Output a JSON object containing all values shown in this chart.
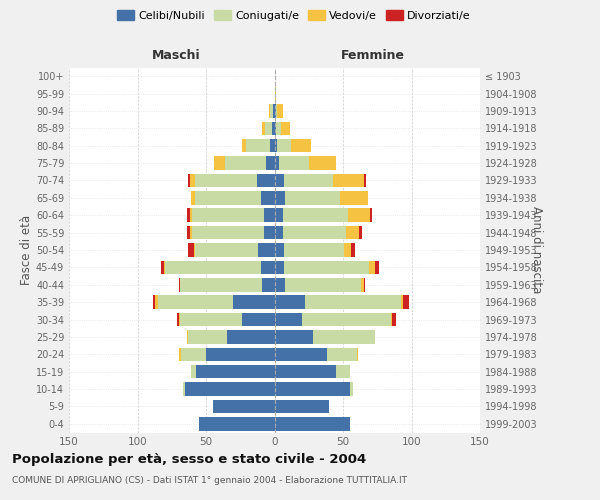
{
  "age_groups": [
    "0-4",
    "5-9",
    "10-14",
    "15-19",
    "20-24",
    "25-29",
    "30-34",
    "35-39",
    "40-44",
    "45-49",
    "50-54",
    "55-59",
    "60-64",
    "65-69",
    "70-74",
    "75-79",
    "80-84",
    "85-89",
    "90-94",
    "95-99",
    "100+"
  ],
  "birth_years": [
    "1999-2003",
    "1994-1998",
    "1989-1993",
    "1984-1988",
    "1979-1983",
    "1974-1978",
    "1969-1973",
    "1964-1968",
    "1959-1963",
    "1954-1958",
    "1949-1953",
    "1944-1948",
    "1939-1943",
    "1934-1938",
    "1929-1933",
    "1924-1928",
    "1919-1923",
    "1914-1918",
    "1909-1913",
    "1904-1908",
    "≤ 1903"
  ],
  "maschi": {
    "celibi": [
      55,
      45,
      65,
      57,
      50,
      35,
      24,
      30,
      9,
      10,
      12,
      8,
      8,
      10,
      13,
      6,
      3,
      2,
      1,
      0,
      0
    ],
    "coniugati": [
      0,
      0,
      2,
      4,
      18,
      28,
      45,
      55,
      60,
      70,
      46,
      52,
      52,
      48,
      45,
      30,
      18,
      5,
      2,
      0,
      0
    ],
    "vedovi": [
      0,
      0,
      0,
      0,
      2,
      1,
      1,
      2,
      0,
      1,
      1,
      2,
      2,
      3,
      4,
      8,
      3,
      2,
      1,
      0,
      0
    ],
    "divorziati": [
      0,
      0,
      0,
      0,
      0,
      0,
      1,
      2,
      1,
      2,
      4,
      2,
      2,
      0,
      1,
      0,
      0,
      0,
      0,
      0,
      0
    ]
  },
  "femmine": {
    "nubili": [
      55,
      40,
      55,
      45,
      38,
      28,
      20,
      22,
      8,
      7,
      7,
      6,
      6,
      8,
      7,
      3,
      2,
      1,
      1,
      0,
      0
    ],
    "coniugate": [
      0,
      0,
      2,
      10,
      22,
      45,
      65,
      70,
      55,
      62,
      44,
      46,
      48,
      40,
      36,
      22,
      10,
      4,
      1,
      0,
      0
    ],
    "vedove": [
      0,
      0,
      0,
      0,
      1,
      0,
      1,
      2,
      2,
      4,
      5,
      10,
      16,
      20,
      22,
      20,
      15,
      6,
      4,
      1,
      0
    ],
    "divorziate": [
      0,
      0,
      0,
      0,
      0,
      0,
      3,
      4,
      1,
      3,
      3,
      2,
      1,
      0,
      2,
      0,
      0,
      0,
      0,
      0,
      0
    ]
  },
  "colors": {
    "celibi": "#4472a8",
    "coniugati": "#c8dba4",
    "vedovi": "#f5c242",
    "divorziati": "#cc2222"
  },
  "legend_labels": [
    "Celibi/Nubili",
    "Coniugati/e",
    "Vedovi/e",
    "Divorziati/e"
  ],
  "xlim": 150,
  "title": "Popolazione per età, sesso e stato civile - 2004",
  "subtitle": "COMUNE DI APRIGLIANO (CS) - Dati ISTAT 1° gennaio 2004 - Elaborazione TUTTITALIA.IT",
  "ylabel_left": "Fasce di età",
  "ylabel_right": "Anni di nascita",
  "xlabel_maschi": "Maschi",
  "xlabel_femmine": "Femmine",
  "bg_color": "#f0f0f0",
  "plot_bg": "#ffffff"
}
